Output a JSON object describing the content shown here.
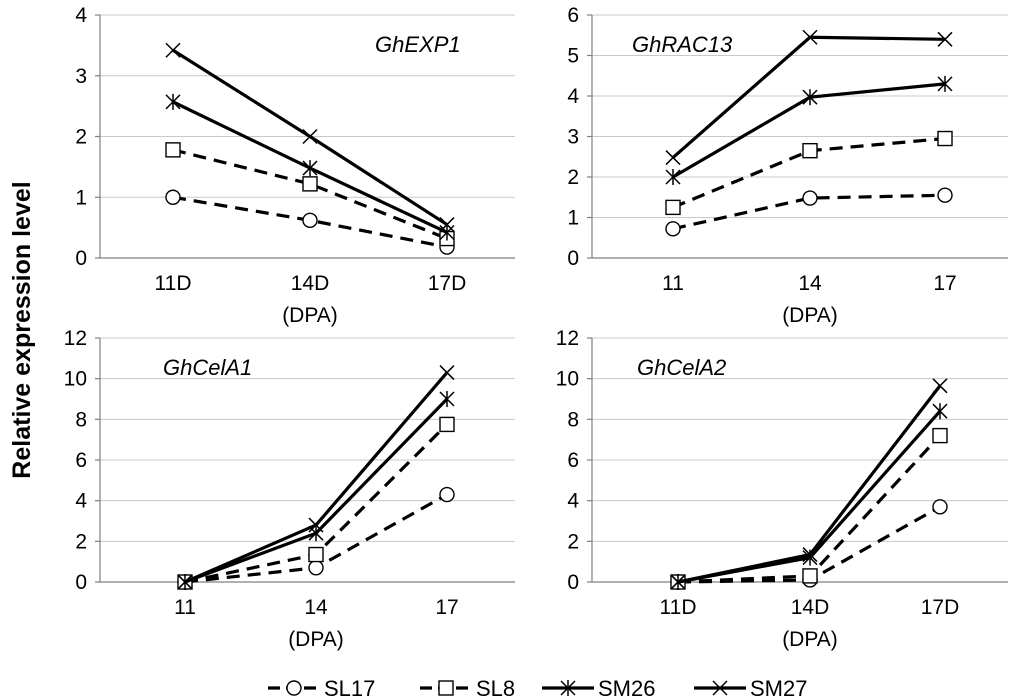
{
  "figure": {
    "ylabel": "Relative expression level",
    "legend": [
      {
        "name": "SL17",
        "marker": "circle",
        "dash": true
      },
      {
        "name": "SL8",
        "marker": "square",
        "dash": true
      },
      {
        "name": "SM26",
        "marker": "star",
        "dash": false
      },
      {
        "name": "SM27",
        "marker": "x",
        "dash": false
      }
    ]
  },
  "chart_data": [
    {
      "type": "line",
      "title": "GhEXP1",
      "categories": [
        "11D",
        "14D",
        "17D"
      ],
      "xlabel": "(DPA)",
      "ylim": [
        0,
        4
      ],
      "yticks": [
        0,
        1,
        2,
        3,
        4
      ],
      "series": [
        {
          "name": "SL17",
          "values": [
            1.0,
            0.62,
            0.18
          ]
        },
        {
          "name": "SL8",
          "values": [
            1.78,
            1.22,
            0.32
          ]
        },
        {
          "name": "SM26",
          "values": [
            2.57,
            1.48,
            0.42
          ]
        },
        {
          "name": "SM27",
          "values": [
            3.42,
            2.0,
            0.55
          ]
        }
      ]
    },
    {
      "type": "line",
      "title": "GhRAC13",
      "categories": [
        "11",
        "14",
        "17"
      ],
      "xlabel": "(DPA)",
      "ylim": [
        0,
        6
      ],
      "yticks": [
        0,
        1,
        2,
        3,
        4,
        5,
        6
      ],
      "series": [
        {
          "name": "SL17",
          "values": [
            0.72,
            1.48,
            1.55
          ]
        },
        {
          "name": "SL8",
          "values": [
            1.25,
            2.65,
            2.95
          ]
        },
        {
          "name": "SM26",
          "values": [
            2.0,
            3.97,
            4.3
          ]
        },
        {
          "name": "SM27",
          "values": [
            2.48,
            5.45,
            5.4
          ]
        }
      ]
    },
    {
      "type": "line",
      "title": "GhCelA1",
      "categories": [
        "11",
        "14",
        "17"
      ],
      "xlabel": "(DPA)",
      "ylim": [
        0,
        12
      ],
      "yticks": [
        0,
        2,
        4,
        6,
        8,
        10,
        12
      ],
      "series": [
        {
          "name": "SL17",
          "values": [
            0.0,
            0.7,
            4.3
          ]
        },
        {
          "name": "SL8",
          "values": [
            0.0,
            1.35,
            7.75
          ]
        },
        {
          "name": "SM26",
          "values": [
            0.0,
            2.4,
            9.0
          ]
        },
        {
          "name": "SM27",
          "values": [
            0.0,
            2.8,
            10.3
          ]
        }
      ]
    },
    {
      "type": "line",
      "title": "GhCelA2",
      "categories": [
        "11D",
        "14D",
        "17D"
      ],
      "xlabel": "(DPA)",
      "ylim": [
        0,
        12
      ],
      "yticks": [
        0,
        2,
        4,
        6,
        8,
        10,
        12
      ],
      "series": [
        {
          "name": "SL17",
          "values": [
            0.0,
            0.1,
            3.7
          ]
        },
        {
          "name": "SL8",
          "values": [
            0.0,
            0.3,
            7.2
          ]
        },
        {
          "name": "SM26",
          "values": [
            0.0,
            1.2,
            8.4
          ]
        },
        {
          "name": "SM27",
          "values": [
            0.0,
            1.35,
            9.65
          ]
        }
      ]
    }
  ]
}
